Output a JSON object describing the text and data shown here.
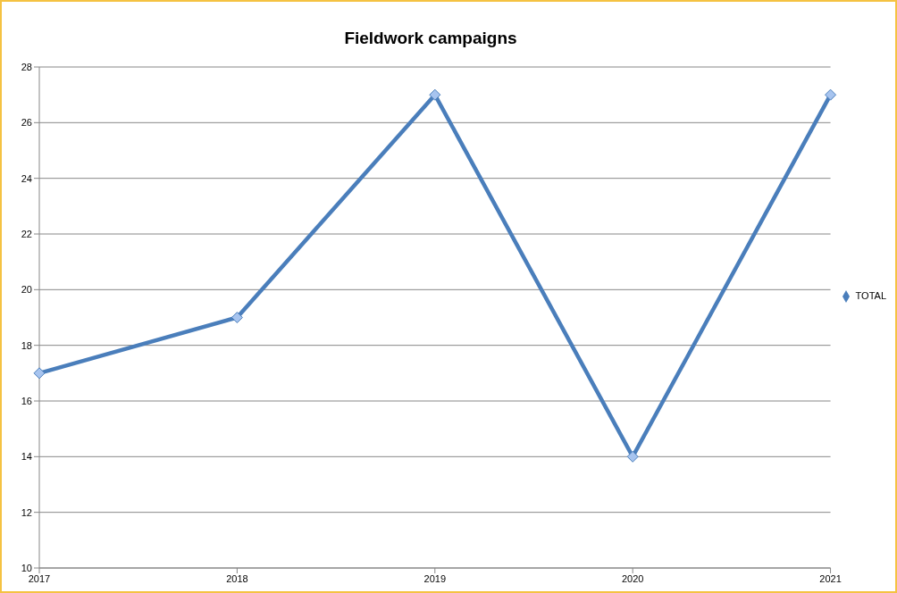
{
  "chart_data": {
    "type": "line",
    "title": "Fieldwork campaigns",
    "categories": [
      "2017",
      "2018",
      "2019",
      "2020",
      "2021"
    ],
    "series": [
      {
        "name": "TOTAL",
        "color": "#4a7ebb",
        "values": [
          17,
          19,
          27,
          14,
          27
        ]
      }
    ],
    "ylim": [
      10,
      28
    ],
    "yticks": [
      10,
      12,
      14,
      16,
      18,
      20,
      22,
      24,
      26,
      28
    ],
    "grid": "y",
    "legend": "right",
    "marker": "diamond",
    "line_style": "solid"
  }
}
